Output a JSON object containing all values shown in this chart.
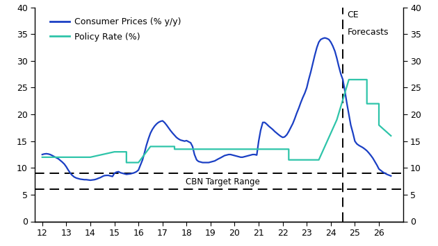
{
  "cpi_color": "#1a3fc4",
  "policy_color": "#2ec4a9",
  "target_upper": 9.0,
  "target_lower": 6.0,
  "forecast_x": 24.5,
  "ylim": [
    0,
    40
  ],
  "yticks": [
    0,
    5,
    10,
    15,
    20,
    25,
    30,
    35,
    40
  ],
  "xticks": [
    12,
    13,
    14,
    15,
    16,
    17,
    18,
    19,
    20,
    21,
    22,
    23,
    24,
    25,
    26
  ],
  "xlim": [
    11.7,
    27.0
  ],
  "legend_cpi": "Consumer Prices (% y/y)",
  "legend_policy": "Policy Rate (%)",
  "annotation": "CBN Target Range",
  "ce_text1": "CE",
  "ce_text2": "Forecasts",
  "cpi_x": [
    12.0,
    12.08,
    12.17,
    12.25,
    12.33,
    12.42,
    12.5,
    12.58,
    12.67,
    12.75,
    12.83,
    12.92,
    13.0,
    13.08,
    13.17,
    13.25,
    13.33,
    13.42,
    13.5,
    13.58,
    13.67,
    13.75,
    13.83,
    13.92,
    14.0,
    14.08,
    14.17,
    14.25,
    14.33,
    14.42,
    14.5,
    14.58,
    14.67,
    14.75,
    14.83,
    14.92,
    15.0,
    15.08,
    15.17,
    15.25,
    15.33,
    15.42,
    15.5,
    15.58,
    15.67,
    15.75,
    15.83,
    15.92,
    16.0,
    16.08,
    16.17,
    16.25,
    16.33,
    16.42,
    16.5,
    16.58,
    16.67,
    16.75,
    16.83,
    16.92,
    17.0,
    17.08,
    17.17,
    17.25,
    17.33,
    17.42,
    17.5,
    17.58,
    17.67,
    17.75,
    17.83,
    17.92,
    18.0,
    18.08,
    18.17,
    18.25,
    18.33,
    18.42,
    18.5,
    18.58,
    18.67,
    18.75,
    18.83,
    18.92,
    19.0,
    19.08,
    19.17,
    19.25,
    19.33,
    19.42,
    19.5,
    19.58,
    19.67,
    19.75,
    19.83,
    19.92,
    20.0,
    20.08,
    20.17,
    20.25,
    20.33,
    20.42,
    20.5,
    20.58,
    20.67,
    20.75,
    20.83,
    20.92,
    21.0,
    21.08,
    21.17,
    21.25,
    21.33,
    21.42,
    21.5,
    21.58,
    21.67,
    21.75,
    21.83,
    21.92,
    22.0,
    22.08,
    22.17,
    22.25,
    22.33,
    22.42,
    22.5,
    22.58,
    22.67,
    22.75,
    22.83,
    22.92,
    23.0,
    23.08,
    23.17,
    23.25,
    23.33,
    23.42,
    23.5,
    23.58,
    23.67,
    23.75,
    23.83,
    23.92,
    24.0,
    24.08,
    24.17,
    24.25,
    24.33,
    24.42,
    24.5,
    24.58,
    24.67,
    24.75,
    24.83,
    24.92,
    25.0,
    25.08,
    25.17,
    25.25,
    25.33,
    25.42,
    25.5,
    25.58,
    25.67,
    25.75,
    25.83,
    25.92,
    26.0,
    26.17,
    26.33,
    26.5
  ],
  "cpi_y": [
    12.5,
    12.6,
    12.65,
    12.6,
    12.5,
    12.3,
    12.1,
    11.9,
    11.7,
    11.4,
    11.1,
    10.7,
    10.2,
    9.6,
    9.0,
    8.6,
    8.3,
    8.1,
    8.0,
    7.9,
    7.85,
    7.8,
    7.8,
    7.75,
    7.7,
    7.75,
    7.8,
    7.9,
    8.05,
    8.2,
    8.4,
    8.55,
    8.6,
    8.6,
    8.5,
    8.4,
    9.0,
    9.2,
    9.3,
    9.1,
    9.0,
    8.9,
    8.8,
    8.85,
    8.9,
    9.0,
    9.1,
    9.3,
    9.6,
    10.5,
    11.5,
    12.8,
    14.2,
    15.5,
    16.5,
    17.2,
    17.8,
    18.2,
    18.5,
    18.7,
    18.8,
    18.5,
    18.0,
    17.5,
    17.0,
    16.5,
    16.1,
    15.7,
    15.4,
    15.2,
    15.1,
    15.0,
    15.1,
    14.9,
    14.7,
    14.0,
    12.5,
    11.5,
    11.2,
    11.1,
    11.0,
    11.0,
    11.0,
    11.0,
    11.1,
    11.2,
    11.3,
    11.5,
    11.7,
    11.9,
    12.1,
    12.3,
    12.4,
    12.5,
    12.5,
    12.4,
    12.3,
    12.2,
    12.1,
    12.0,
    12.0,
    12.1,
    12.2,
    12.3,
    12.4,
    12.5,
    12.5,
    12.4,
    15.0,
    17.0,
    18.5,
    18.5,
    18.2,
    17.8,
    17.5,
    17.2,
    16.8,
    16.5,
    16.2,
    15.9,
    15.7,
    15.8,
    16.2,
    16.8,
    17.5,
    18.3,
    19.2,
    20.2,
    21.2,
    22.2,
    23.1,
    24.0,
    25.0,
    26.5,
    28.0,
    29.5,
    31.0,
    32.5,
    33.5,
    34.0,
    34.2,
    34.3,
    34.2,
    34.0,
    33.5,
    32.8,
    31.8,
    30.5,
    29.0,
    27.5,
    26.5,
    24.5,
    22.0,
    20.0,
    18.0,
    16.5,
    15.0,
    14.5,
    14.2,
    14.0,
    13.8,
    13.5,
    13.2,
    12.8,
    12.3,
    11.8,
    11.2,
    10.5,
    9.8,
    9.2,
    8.8,
    8.5
  ],
  "policy_x_steps": [
    12.0,
    13.0,
    13.0,
    14.0,
    14.0,
    15.0,
    15.0,
    15.5,
    15.5,
    16.0,
    16.0,
    16.5,
    16.5,
    17.5,
    17.5,
    22.25,
    22.25,
    23.5,
    23.5,
    24.25,
    24.25,
    24.75,
    24.75,
    25.5,
    25.5,
    26.0,
    26.0,
    26.5
  ],
  "policy_y_steps": [
    12.0,
    12.0,
    12.0,
    12.0,
    12.0,
    13.0,
    13.0,
    13.0,
    11.0,
    11.0,
    11.0,
    14.0,
    14.0,
    14.0,
    13.5,
    13.5,
    11.5,
    11.5,
    11.5,
    19.0,
    19.0,
    26.5,
    26.5,
    26.5,
    22.0,
    22.0,
    18.0,
    16.0
  ]
}
